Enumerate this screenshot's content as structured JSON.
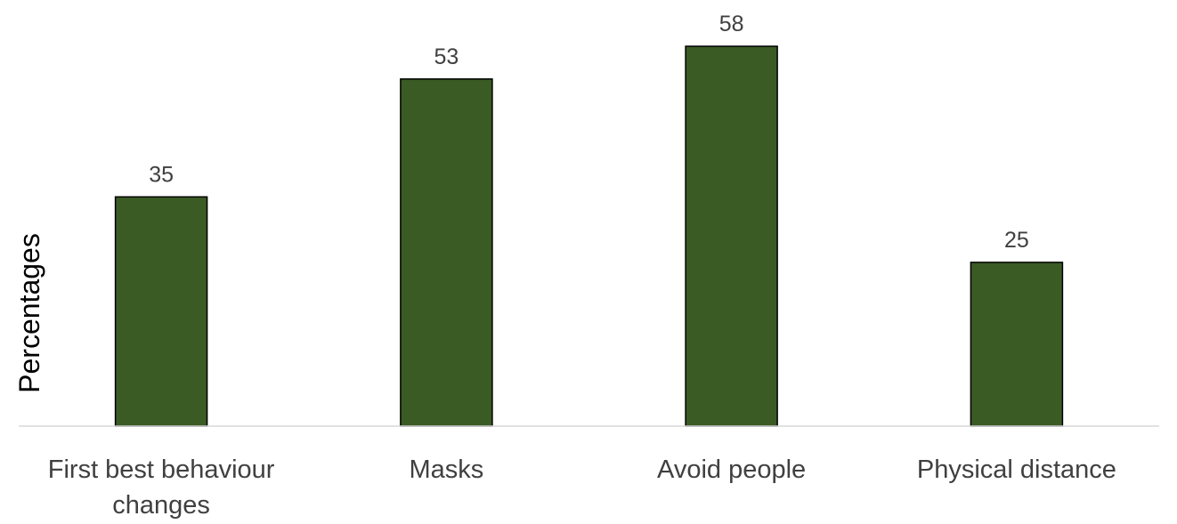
{
  "chart_data": {
    "type": "bar",
    "title": "",
    "xlabel": "",
    "ylabel": "Percentages",
    "categories": [
      [
        "First best behaviour",
        "changes"
      ],
      [
        "Masks"
      ],
      [
        "Avoid people"
      ],
      [
        "Physical distance"
      ]
    ],
    "values": [
      35,
      53,
      58,
      25
    ],
    "ylim": [
      0,
      58
    ],
    "grid": false,
    "legend": "none",
    "colors": {
      "bar_fill": "#3b5b24",
      "bar_stroke": "#000000",
      "axis_line": "#d9d9d9",
      "label_text": "#404040"
    }
  }
}
